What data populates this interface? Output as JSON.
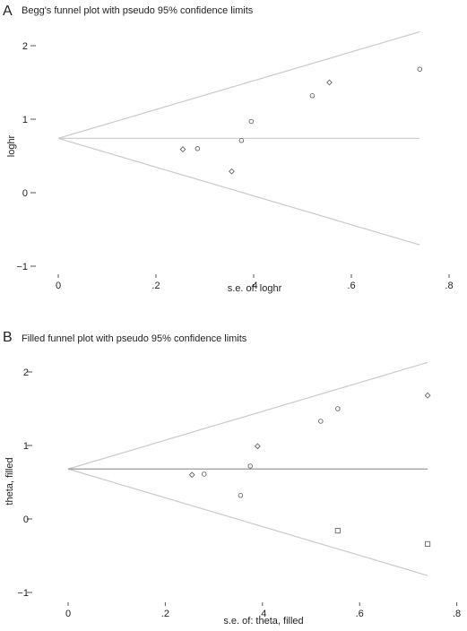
{
  "chart_data": [
    {
      "type": "scatter",
      "panel_label": "A",
      "title": "Begg's funnel plot with pseudo 95% confidence limits",
      "xlabel": "s.e. of: loghr",
      "ylabel": "loghr",
      "xlim": [
        0,
        0.8
      ],
      "ylim": [
        -1,
        2.2
      ],
      "x_ticks": [
        0,
        0.2,
        0.4,
        0.6,
        0.8
      ],
      "x_tick_labels": [
        "0",
        ".2",
        ".4",
        ".6",
        ".8"
      ],
      "y_ticks": [
        -1,
        0,
        1,
        2
      ],
      "y_tick_labels": [
        "−1",
        "0",
        "1",
        "2"
      ],
      "pooled_estimate": 0.74,
      "funnel": {
        "x_end": 0.74,
        "upper_end": 2.19,
        "lower_end": -0.71
      },
      "points": [
        {
          "x": 0.255,
          "y": 0.59,
          "marker": "diamond"
        },
        {
          "x": 0.285,
          "y": 0.6,
          "marker": "circle"
        },
        {
          "x": 0.355,
          "y": 0.29,
          "marker": "diamond"
        },
        {
          "x": 0.375,
          "y": 0.71,
          "marker": "circle"
        },
        {
          "x": 0.395,
          "y": 0.97,
          "marker": "circle"
        },
        {
          "x": 0.52,
          "y": 1.32,
          "marker": "circle"
        },
        {
          "x": 0.555,
          "y": 1.5,
          "marker": "diamond"
        },
        {
          "x": 0.74,
          "y": 1.68,
          "marker": "circle"
        }
      ],
      "grid": false
    },
    {
      "type": "scatter",
      "panel_label": "B",
      "title": "Filled funnel plot with pseudo 95% confidence limits",
      "xlabel": "s.e. of: theta, filled",
      "ylabel": "theta, filled",
      "xlim": [
        0,
        0.8
      ],
      "ylim": [
        -1,
        2.2
      ],
      "x_ticks": [
        0,
        0.2,
        0.4,
        0.6,
        0.8
      ],
      "x_tick_labels": [
        "0",
        ".2",
        ".4",
        ".6",
        ".8"
      ],
      "y_ticks": [
        -1,
        0,
        1,
        2
      ],
      "y_tick_labels": [
        "−1",
        "0",
        "1",
        "2"
      ],
      "pooled_estimate": 0.68,
      "funnel": {
        "x_end": 0.74,
        "upper_end": 2.13,
        "lower_end": -0.77
      },
      "points": [
        {
          "x": 0.255,
          "y": 0.6,
          "marker": "diamond"
        },
        {
          "x": 0.28,
          "y": 0.61,
          "marker": "circle"
        },
        {
          "x": 0.355,
          "y": 0.32,
          "marker": "circle"
        },
        {
          "x": 0.375,
          "y": 0.72,
          "marker": "circle"
        },
        {
          "x": 0.39,
          "y": 0.99,
          "marker": "diamond"
        },
        {
          "x": 0.52,
          "y": 1.33,
          "marker": "circle"
        },
        {
          "x": 0.555,
          "y": 1.5,
          "marker": "circle"
        },
        {
          "x": 0.74,
          "y": 1.68,
          "marker": "diamond"
        },
        {
          "x": 0.555,
          "y": -0.16,
          "marker": "square"
        },
        {
          "x": 0.74,
          "y": -0.34,
          "marker": "square"
        }
      ],
      "grid": false
    }
  ]
}
